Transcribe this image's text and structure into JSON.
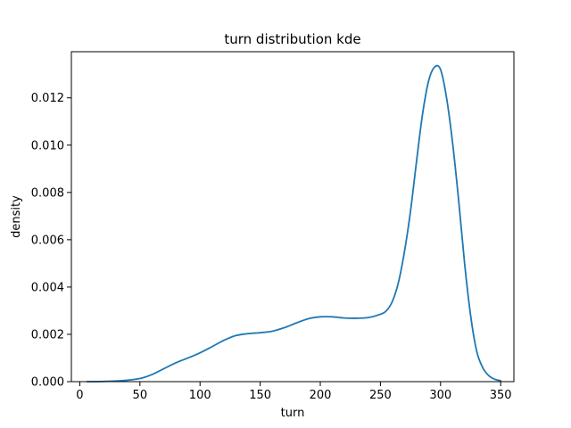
{
  "chart_data": {
    "type": "line",
    "title": "turn distribution kde",
    "xlabel": "turn",
    "ylabel": "density",
    "xlim": [
      -7,
      361
    ],
    "ylim": [
      0,
      0.01395
    ],
    "xticks": [
      0,
      50,
      100,
      150,
      200,
      250,
      300,
      350
    ],
    "xtick_labels": [
      "0",
      "50",
      "100",
      "150",
      "200",
      "250",
      "300",
      "350"
    ],
    "yticks": [
      0.0,
      0.002,
      0.004,
      0.006,
      0.008,
      0.01,
      0.012
    ],
    "ytick_labels": [
      "0.000",
      "0.002",
      "0.004",
      "0.006",
      "0.008",
      "0.010",
      "0.012"
    ],
    "grid": false,
    "series": [
      {
        "color": "#1f77b4",
        "x": [
          6,
          20,
          35,
          50,
          60,
          70,
          80,
          90,
          100,
          110,
          120,
          130,
          140,
          150,
          160,
          170,
          180,
          190,
          200,
          210,
          220,
          230,
          240,
          250,
          255,
          260,
          265,
          270,
          275,
          280,
          285,
          290,
          295,
          300,
          305,
          310,
          315,
          320,
          325,
          330,
          335,
          340,
          345,
          350
        ],
        "y": [
          0.0,
          1e-05,
          4e-05,
          0.00013,
          0.0003,
          0.00055,
          0.0008,
          0.001,
          0.00122,
          0.00148,
          0.00175,
          0.00195,
          0.00203,
          0.00207,
          0.00213,
          0.00228,
          0.00248,
          0.00266,
          0.00274,
          0.00274,
          0.00269,
          0.00268,
          0.00271,
          0.00285,
          0.003,
          0.0034,
          0.0042,
          0.0055,
          0.0072,
          0.0093,
          0.0113,
          0.0127,
          0.0133,
          0.0132,
          0.012,
          0.0101,
          0.0077,
          0.005,
          0.0028,
          0.0013,
          0.0006,
          0.00026,
          0.0001,
          4e-05
        ]
      }
    ]
  }
}
